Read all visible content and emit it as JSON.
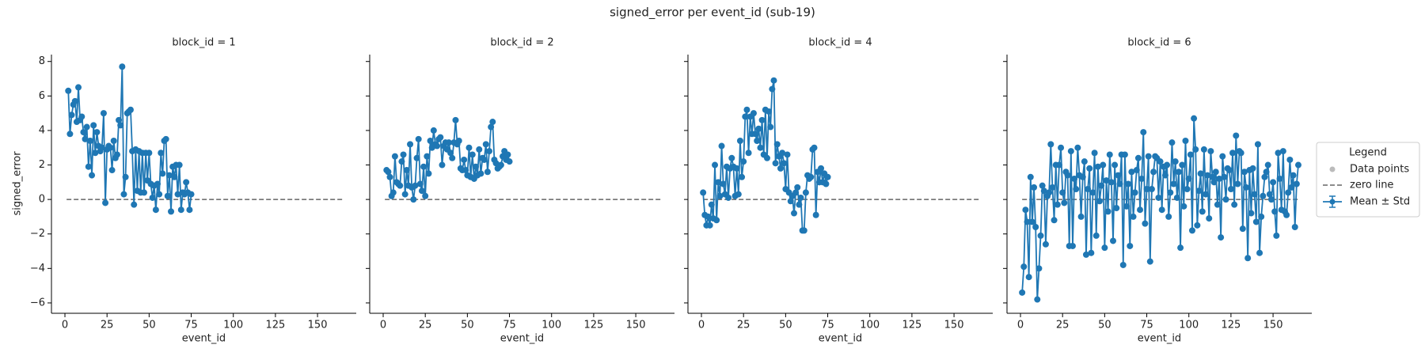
{
  "chart_data": {
    "type": "line",
    "title": "signed_error per event_id (sub-19)",
    "x_label": "event_id",
    "y_label": "signed_error",
    "xlim": [
      -8,
      173
    ],
    "ylim": [
      -6.6,
      8.4
    ],
    "xticks": [
      0,
      25,
      50,
      75,
      100,
      125,
      150
    ],
    "yticks": [
      {
        "value": -6,
        "label": "−6"
      },
      {
        "value": -4,
        "label": "−4"
      },
      {
        "value": -2,
        "label": "−2"
      },
      0,
      2,
      4,
      6,
      8
    ],
    "legend": {
      "title": "Legend",
      "corner": "right outside"
    },
    "point_layer": {
      "name": "Data points",
      "color": "#bbbbbb"
    },
    "reference_line": {
      "name": "zero line",
      "y": 0,
      "color": "#666666"
    },
    "mean_layer": {
      "name": "Mean ± Std",
      "color": "#1f77b4"
    },
    "panels": [
      {
        "title": "block_id = 1",
        "x": [
          2,
          3,
          4,
          5,
          6,
          7,
          8,
          9,
          10,
          11,
          12,
          13,
          14,
          15,
          16,
          17,
          18,
          19,
          20,
          21,
          22,
          23,
          24,
          25,
          26,
          27,
          28,
          29,
          30,
          31,
          32,
          33,
          34,
          35,
          36,
          37,
          38,
          39,
          40,
          41,
          42,
          43,
          44,
          45,
          46,
          47,
          48,
          49,
          50,
          51,
          52,
          53,
          54,
          55,
          56,
          57,
          58,
          59,
          60,
          61,
          62,
          63,
          64,
          65,
          66,
          67,
          68,
          69,
          70,
          71,
          72,
          73,
          74,
          75
        ],
        "values": [
          6.3,
          3.8,
          4.9,
          5.5,
          5.7,
          4.5,
          6.5,
          4.6,
          4.8,
          3.9,
          3.5,
          4.2,
          1.9,
          3.4,
          1.4,
          4.3,
          2.7,
          3.9,
          3.1,
          2.8,
          3.0,
          5.0,
          -0.2,
          2.9,
          3.1,
          3.0,
          1.7,
          3.4,
          2.4,
          2.6,
          4.6,
          4.3,
          7.7,
          0.3,
          1.3,
          5.0,
          5.1,
          5.2,
          2.8,
          -0.3,
          2.9,
          0.5,
          2.8,
          0.4,
          2.7,
          0.4,
          2.7,
          1.1,
          2.7,
          0.9,
          0.1,
          0.8,
          -0.6,
          0.9,
          0.3,
          2.7,
          1.5,
          3.4,
          3.5,
          0.2,
          1.4,
          -0.7,
          1.9,
          1.3,
          2.0,
          0.3,
          2.0,
          -0.6,
          0.4,
          0.3,
          1.0,
          0.4,
          -0.6,
          0.3
        ]
      },
      {
        "title": "block_id = 2",
        "x": [
          2,
          3,
          4,
          5,
          6,
          7,
          8,
          9,
          10,
          11,
          12,
          13,
          14,
          15,
          16,
          17,
          18,
          19,
          20,
          21,
          22,
          23,
          24,
          25,
          26,
          27,
          28,
          29,
          30,
          31,
          32,
          33,
          34,
          35,
          36,
          37,
          38,
          39,
          40,
          41,
          42,
          43,
          44,
          45,
          46,
          47,
          48,
          49,
          50,
          51,
          52,
          53,
          54,
          55,
          56,
          57,
          58,
          59,
          60,
          61,
          62,
          63,
          64,
          65,
          66,
          67,
          68,
          69,
          70,
          71,
          72,
          73,
          74,
          75
        ],
        "values": [
          1.7,
          1.6,
          1.3,
          0.2,
          0.4,
          2.5,
          1.0,
          0.9,
          0.8,
          2.2,
          2.6,
          0.3,
          1.7,
          0.8,
          3.2,
          0.7,
          0.0,
          0.8,
          2.4,
          3.5,
          0.9,
          0.5,
          1.9,
          0.2,
          2.5,
          1.5,
          3.4,
          3.0,
          4.0,
          3.2,
          3.1,
          3.5,
          3.6,
          2.0,
          3.1,
          3.3,
          2.9,
          3.3,
          2.7,
          2.4,
          3.3,
          4.6,
          3.2,
          3.4,
          1.8,
          1.7,
          2.3,
          1.7,
          1.4,
          3.0,
          1.3,
          2.6,
          1.2,
          1.9,
          1.4,
          2.9,
          1.5,
          2.4,
          2.3,
          3.2,
          1.6,
          2.8,
          4.2,
          4.5,
          2.3,
          2.1,
          1.8,
          1.9,
          2.0,
          2.5,
          2.8,
          2.3,
          2.6,
          2.2
        ]
      },
      {
        "title": "block_id = 4",
        "x": [
          1,
          2,
          3,
          4,
          5,
          6,
          7,
          8,
          9,
          10,
          11,
          12,
          13,
          14,
          15,
          16,
          17,
          18,
          19,
          20,
          21,
          22,
          23,
          24,
          25,
          26,
          27,
          28,
          29,
          30,
          31,
          32,
          33,
          34,
          35,
          36,
          37,
          38,
          39,
          40,
          41,
          42,
          43,
          44,
          45,
          46,
          47,
          48,
          49,
          50,
          51,
          52,
          53,
          54,
          55,
          56,
          57,
          58,
          59,
          60,
          61,
          62,
          63,
          64,
          65,
          66,
          67,
          68,
          69,
          70,
          71,
          72,
          73,
          74,
          75
        ],
        "values": [
          0.4,
          -0.9,
          -1.5,
          -1.0,
          -1.5,
          -0.3,
          -1.1,
          2.0,
          -1.2,
          1.0,
          0.2,
          3.1,
          0.9,
          0.3,
          1.9,
          0.1,
          1.8,
          2.4,
          1.9,
          0.2,
          1.8,
          0.3,
          3.4,
          1.3,
          2.2,
          4.8,
          5.2,
          2.7,
          4.8,
          3.8,
          5.0,
          3.8,
          3.4,
          4.1,
          3.0,
          4.6,
          2.6,
          5.2,
          2.4,
          5.1,
          4.2,
          6.4,
          6.9,
          2.1,
          3.2,
          2.5,
          1.8,
          2.7,
          2.1,
          0.6,
          2.6,
          0.4,
          -0.1,
          0.2,
          -0.8,
          0.4,
          0.7,
          -0.3,
          0.1,
          -1.8,
          -1.8,
          0.4,
          1.4,
          1.2,
          1.3,
          2.9,
          3.0,
          -0.9,
          1.6,
          1.0,
          1.8,
          1.0,
          1.5,
          0.9,
          1.3
        ]
      },
      {
        "title": "block_id = 6",
        "x": [
          1,
          2,
          3,
          4,
          5,
          6,
          7,
          8,
          9,
          10,
          11,
          12,
          13,
          14,
          15,
          16,
          17,
          18,
          19,
          20,
          21,
          22,
          23,
          24,
          25,
          26,
          27,
          28,
          29,
          30,
          31,
          32,
          33,
          34,
          35,
          36,
          37,
          38,
          39,
          40,
          41,
          42,
          43,
          44,
          45,
          46,
          47,
          48,
          49,
          50,
          51,
          52,
          53,
          54,
          55,
          56,
          57,
          58,
          59,
          60,
          61,
          62,
          63,
          64,
          65,
          66,
          67,
          68,
          69,
          70,
          71,
          72,
          73,
          74,
          75,
          76,
          77,
          78,
          79,
          80,
          81,
          82,
          83,
          84,
          85,
          86,
          87,
          88,
          89,
          90,
          91,
          92,
          93,
          94,
          95,
          96,
          97,
          98,
          99,
          100,
          101,
          102,
          103,
          104,
          105,
          106,
          107,
          108,
          109,
          110,
          111,
          112,
          113,
          114,
          115,
          116,
          117,
          118,
          119,
          120,
          121,
          122,
          123,
          124,
          125,
          126,
          127,
          128,
          129,
          130,
          131,
          132,
          133,
          134,
          135,
          136,
          137,
          138,
          139,
          140,
          141,
          142,
          143,
          144,
          145,
          146,
          147,
          148,
          149,
          150,
          151,
          152,
          153,
          154,
          155,
          156,
          157,
          158,
          159,
          160,
          161,
          162,
          163,
          164,
          165
        ],
        "values": [
          -5.4,
          -3.9,
          -0.6,
          -1.3,
          -4.5,
          1.3,
          -1.3,
          0.7,
          -1.6,
          -5.8,
          -4.0,
          -2.1,
          0.8,
          0.5,
          -2.6,
          0.2,
          0.4,
          3.2,
          0.7,
          -1.2,
          2.0,
          -0.3,
          2.0,
          3.0,
          0.4,
          -0.2,
          1.6,
          1.4,
          -2.7,
          2.8,
          -2.7,
          1.2,
          0.6,
          3.0,
          1.4,
          -1.0,
          1.3,
          2.2,
          -3.2,
          0.6,
          1.8,
          -3.1,
          0.4,
          2.7,
          -2.1,
          1.9,
          -0.1,
          0.8,
          2.0,
          -2.8,
          1.1,
          -0.7,
          2.6,
          1.0,
          -2.4,
          2.0,
          -0.5,
          1.4,
          0.9,
          2.6,
          -3.8,
          2.6,
          -0.4,
          0.9,
          -2.7,
          1.6,
          -1.0,
          0.4,
          1.7,
          2.4,
          -0.6,
          1.2,
          3.9,
          -1.4,
          0.6,
          2.5,
          -3.6,
          0.6,
          1.6,
          2.5,
          2.4,
          0.1,
          2.2,
          -0.6,
          1.9,
          1.4,
          2.0,
          -1.0,
          0.4,
          3.3,
          0.9,
          2.2,
          0.1,
          1.6,
          -2.8,
          2.0,
          -0.4,
          3.4,
          0.6,
          1.2,
          2.6,
          -1.8,
          4.7,
          2.9,
          -1.5,
          0.5,
          1.5,
          -0.7,
          2.9,
          0.3,
          1.4,
          -1.1,
          2.8,
          1.3,
          1.0,
          1.6,
          -0.3,
          1.2,
          -2.2,
          2.5,
          1.3,
          0.0,
          1.8,
          1.7,
          0.6,
          2.7,
          -0.3,
          3.7,
          0.9,
          2.8,
          2.7,
          -1.7,
          1.6,
          0.7,
          -3.4,
          1.7,
          -0.8,
          1.8,
          0.3,
          -1.3,
          3.2,
          -3.1,
          -1.0,
          0.2,
          1.3,
          1.6,
          2.0,
          0.3,
          0.0,
          1.0,
          -0.7,
          -2.1,
          2.7,
          1.2,
          -0.6,
          2.8,
          -0.7,
          -0.9,
          0.4,
          2.3,
          0.7,
          1.4,
          -1.6,
          0.9,
          2.0
        ]
      }
    ]
  }
}
